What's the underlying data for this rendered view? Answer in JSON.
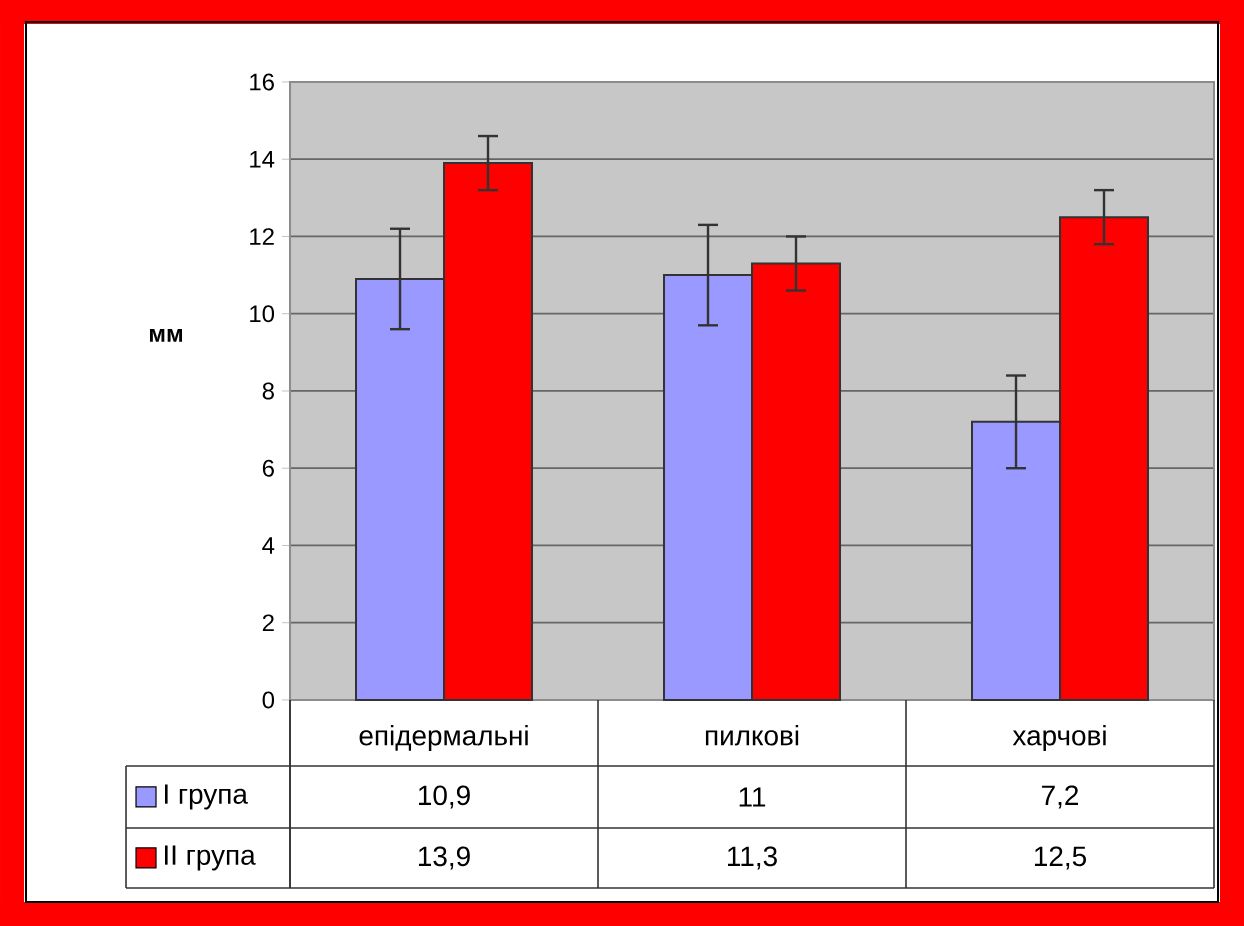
{
  "chart_data": {
    "type": "bar",
    "ylabel": "мм",
    "categories": [
      "епідермальні",
      "пилкові",
      "харчові"
    ],
    "series": [
      {
        "name": "I група",
        "color": "#9999ff",
        "values": [
          10.9,
          11,
          7.2
        ],
        "errors": [
          1.3,
          1.3,
          1.2
        ],
        "value_labels": [
          "10,9",
          "11",
          "7,2"
        ]
      },
      {
        "name": "II група",
        "color": "#ff0000",
        "values": [
          13.9,
          11.3,
          12.5
        ],
        "errors": [
          0.7,
          0.7,
          0.7
        ],
        "value_labels": [
          "13,9",
          "11,3",
          "12,5"
        ]
      }
    ],
    "ylim": [
      0,
      16
    ],
    "yticks": [
      0,
      2,
      4,
      6,
      8,
      10,
      12,
      14,
      16
    ],
    "grid": "y",
    "legend": "bottom"
  }
}
